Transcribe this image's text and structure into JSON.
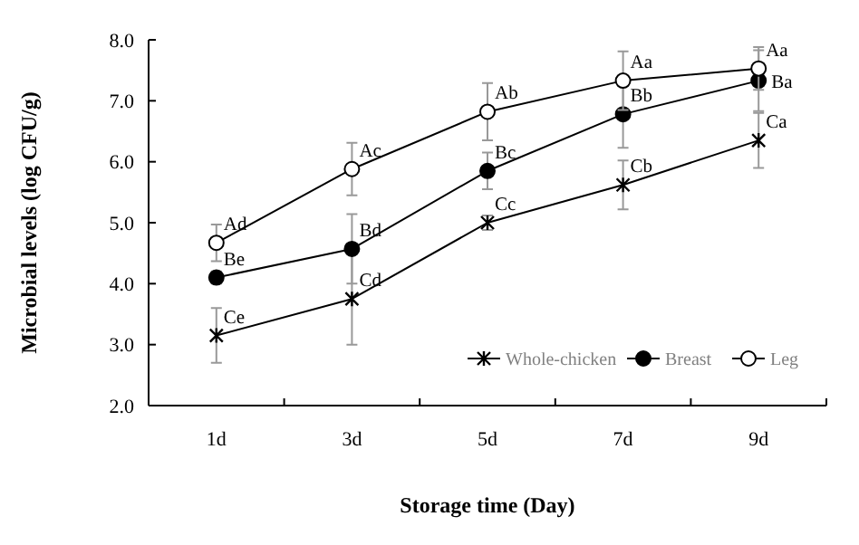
{
  "chart_data": {
    "type": "line",
    "xlabel": "Storage time (Day)",
    "ylabel": "Microbial levels  (log CFU/g)",
    "categories": [
      "1d",
      "3d",
      "5d",
      "7d",
      "9d"
    ],
    "ylim": [
      2,
      8
    ],
    "yticks": [
      {
        "value": 2,
        "label": "2.0"
      },
      {
        "value": 3,
        "label": "3.0"
      },
      {
        "value": 4,
        "label": "4.0"
      },
      {
        "value": 5,
        "label": "5.0"
      },
      {
        "value": 6,
        "label": "6.0"
      },
      {
        "value": 7,
        "label": "7.0"
      },
      {
        "value": 8,
        "label": "8.0"
      }
    ],
    "grid": false,
    "legend": "bottom right",
    "line_style": "solid",
    "series": [
      {
        "name": "Whole-chicken",
        "color": "#000000",
        "marker": "cross",
        "values": [
          3.15,
          3.75,
          5.0,
          5.62,
          6.35
        ],
        "errors": [
          0.45,
          0.75,
          0.12,
          0.4,
          0.45
        ]
      },
      {
        "name": "Breast",
        "color": "#000000",
        "marker": "circle",
        "values": [
          4.1,
          4.57,
          5.85,
          6.78,
          7.33
        ],
        "errors": [
          0.1,
          0.57,
          0.3,
          0.55,
          0.5
        ]
      },
      {
        "name": "Leg",
        "color": "#000000",
        "marker": "circle",
        "values": [
          4.67,
          5.88,
          6.82,
          7.33,
          7.53
        ],
        "errors": [
          0.3,
          0.43,
          0.47,
          0.48,
          0.35
        ]
      }
    ],
    "annotations": [
      {
        "text": "Ce",
        "x": "1d",
        "y": 3.15
      },
      {
        "text": "Cd",
        "x": "3d",
        "y": 3.75
      },
      {
        "text": "Cc",
        "x": "5d",
        "y": 5.0
      },
      {
        "text": "Cb",
        "x": "7d",
        "y": 5.62
      },
      {
        "text": "Ca",
        "x": "9d",
        "y": 6.35
      },
      {
        "text": "Be",
        "x": "1d",
        "y": 4.1
      },
      {
        "text": "Bd",
        "x": "3d",
        "y": 4.57
      },
      {
        "text": "Bc",
        "x": "5d",
        "y": 5.85
      },
      {
        "text": "Bb",
        "x": "7d",
        "y": 6.78
      },
      {
        "text": "Ba",
        "x": "9d",
        "y": 7.33
      },
      {
        "text": "Ad",
        "x": "1d",
        "y": 4.67
      },
      {
        "text": "Ac",
        "x": "3d",
        "y": 5.88
      },
      {
        "text": "Ab",
        "x": "5d",
        "y": 6.82
      },
      {
        "text": "Aa",
        "x": "7d",
        "y": 7.33
      },
      {
        "text": "Aa",
        "x": "9d",
        "y": 7.53
      }
    ]
  }
}
